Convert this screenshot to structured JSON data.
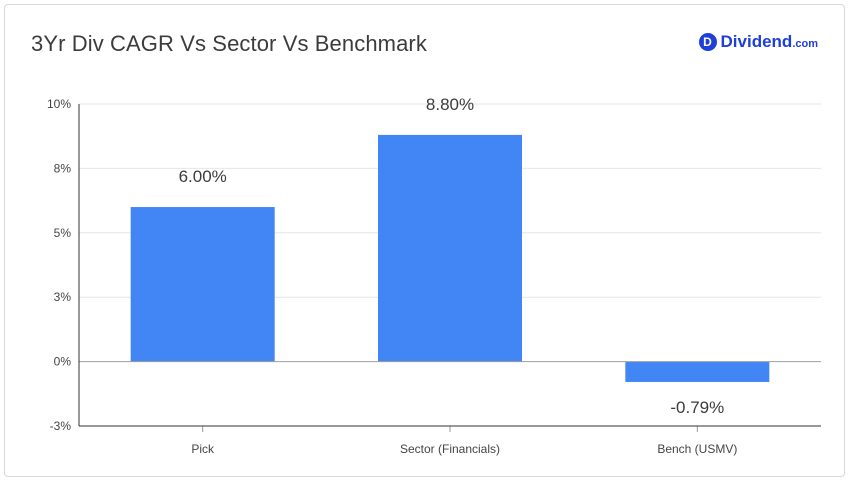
{
  "title": "3Yr Div CAGR Vs Sector Vs Benchmark",
  "brand": {
    "badge": "D",
    "name": "Dividend",
    "suffix": ".com",
    "color": "#1f3fd6"
  },
  "chart_data": {
    "type": "bar",
    "categories": [
      "Pick",
      "Sector (Financials)",
      "Bench (USMV)"
    ],
    "values": [
      6.0,
      8.8,
      -0.79
    ],
    "data_labels": [
      "6.00%",
      "8.80%",
      "-0.79%"
    ],
    "yticks": [
      {
        "value": 10,
        "label": "10%"
      },
      {
        "value": 7.5,
        "label": "8%"
      },
      {
        "value": 5,
        "label": "5%"
      },
      {
        "value": 2.5,
        "label": "3%"
      },
      {
        "value": 0,
        "label": "0%"
      },
      {
        "value": -2.5,
        "label": "-3%"
      }
    ],
    "ylim": [
      -2.5,
      10
    ],
    "grid": true,
    "bar_color": "#4285f4"
  }
}
